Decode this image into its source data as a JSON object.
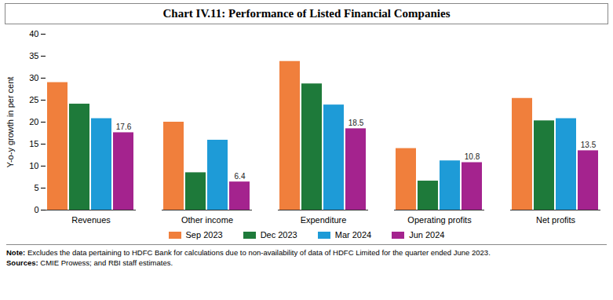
{
  "chart_data": {
    "type": "bar",
    "title": "Chart IV.11: Performance of Listed Financial Companies",
    "ylabel": "Y-o-y growth in per cent",
    "categories": [
      "Revenues",
      "Other income",
      "Expenditure",
      "Operating profits",
      "Net profits"
    ],
    "series": [
      {
        "name": "Sep 2023",
        "color": "#f07f3c",
        "values": [
          29.0,
          20.0,
          33.8,
          14.0,
          25.4
        ]
      },
      {
        "name": "Dec 2023",
        "color": "#1e7a3a",
        "values": [
          24.1,
          8.5,
          28.7,
          6.6,
          20.3
        ]
      },
      {
        "name": "Mar 2024",
        "color": "#1e9bd7",
        "values": [
          20.8,
          15.9,
          23.9,
          11.2,
          20.8
        ]
      },
      {
        "name": "Jun 2024",
        "color": "#a4238e",
        "values": [
          17.6,
          6.4,
          18.5,
          10.8,
          13.5
        ],
        "data_labels": true
      }
    ],
    "ylim": [
      0,
      40
    ],
    "yticks": [
      0,
      5,
      10,
      15,
      20,
      25,
      30,
      35,
      40
    ],
    "grid": false,
    "legend": "bottom",
    "note_label": "Note:",
    "note": "Excludes the data pertaining to HDFC Bank for calculations due to non-availability of data of HDFC Limited for the quarter ended June 2023.",
    "source_label": "Sources:",
    "source": "CMIE Prowess; and RBI staff estimates."
  }
}
